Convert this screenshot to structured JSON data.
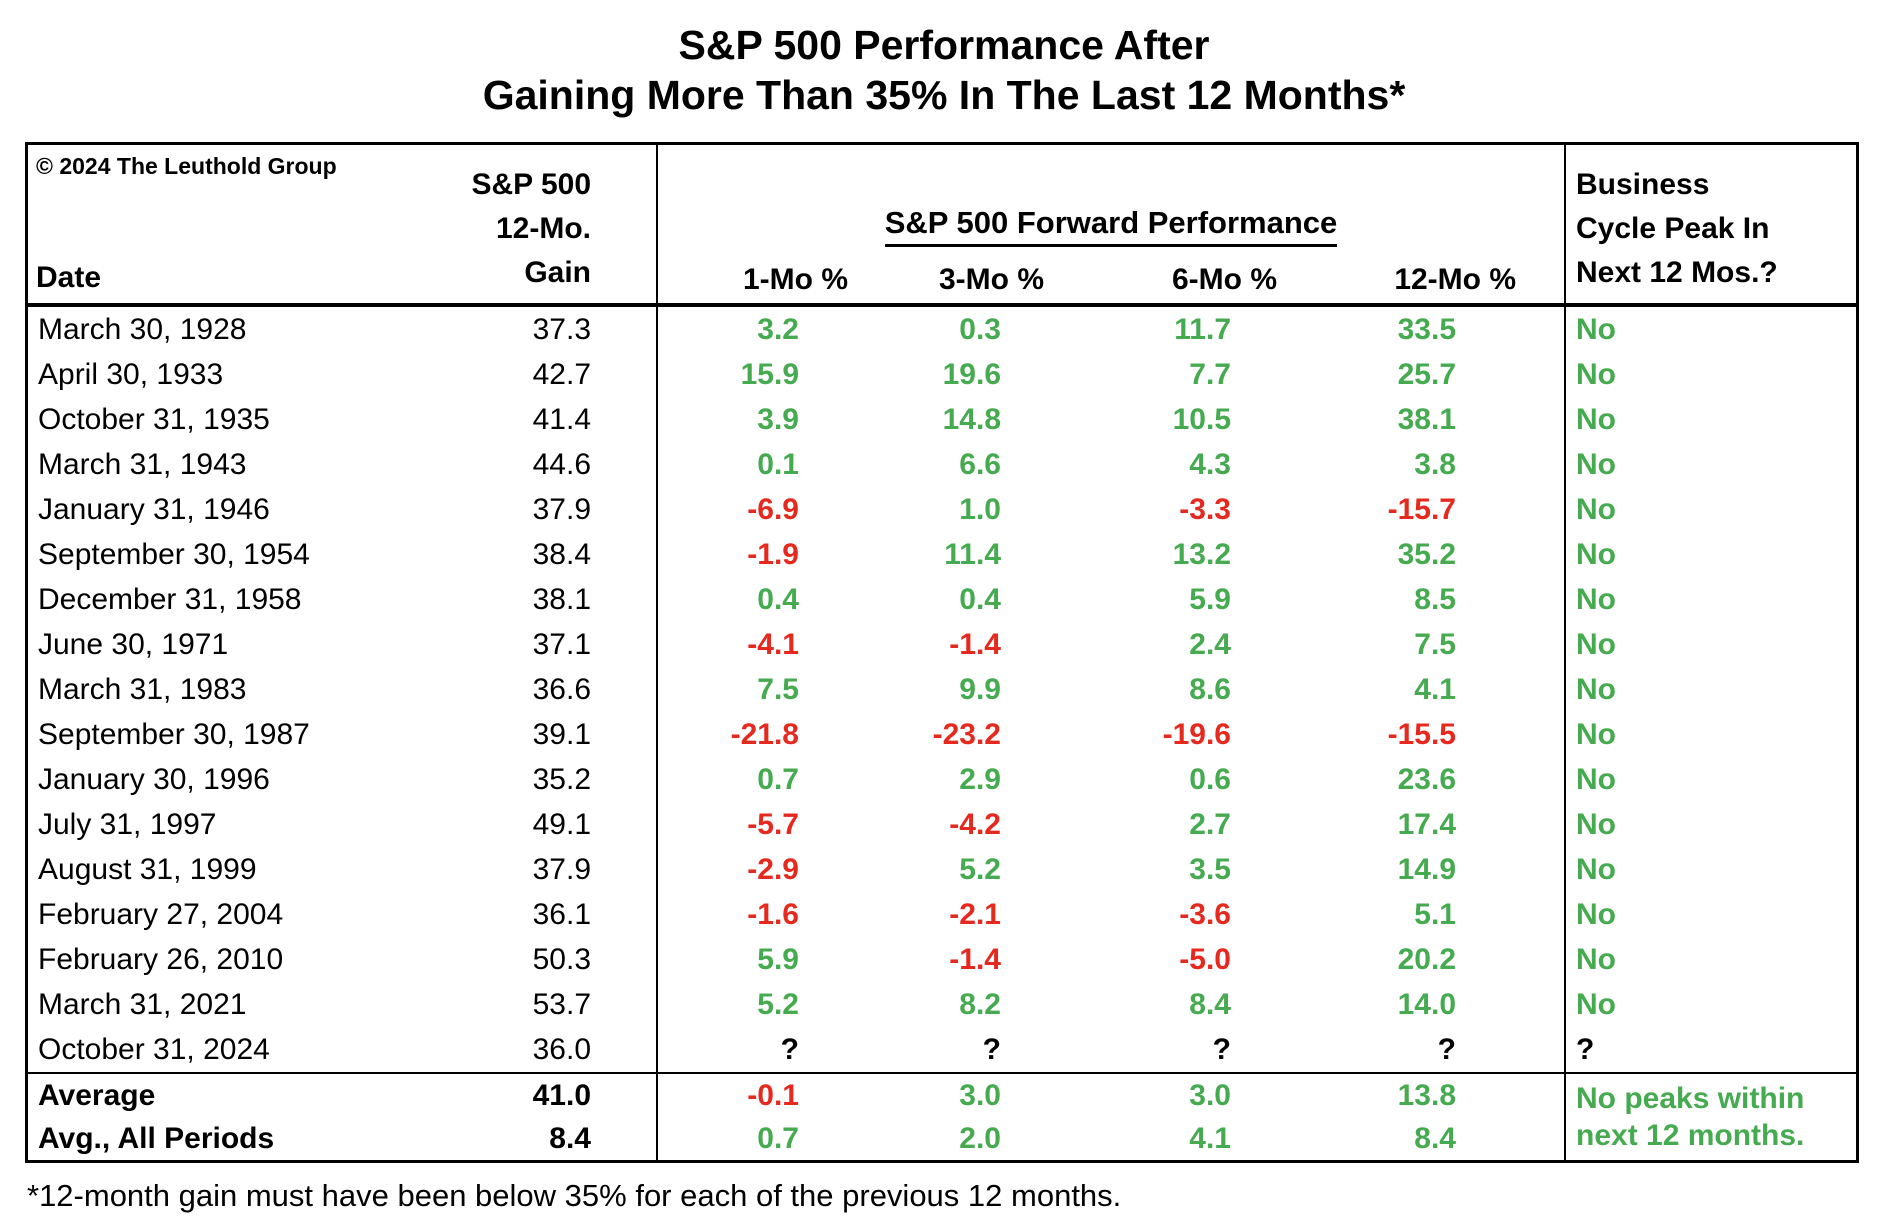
{
  "title": {
    "line1": "S&P 500 Performance After",
    "line2": "Gaining More Than 35% In The Last 12 Months*"
  },
  "copyright": "© 2024 The Leuthold Group",
  "header": {
    "date_label": "Date",
    "gain_lines": [
      "S&P 500",
      "12-Mo.",
      "Gain"
    ],
    "forward_title": "S&P 500 Forward Performance",
    "forward_cols": [
      "1-Mo %",
      "3-Mo %",
      "6-Mo %",
      "12-Mo %"
    ],
    "business_lines": [
      "Business",
      "Cycle Peak In",
      "Next 12 Mos.?"
    ]
  },
  "colors": {
    "positive": "#46AA50",
    "negative": "#E6291F",
    "neutral": "#000000"
  },
  "footnote": "*12-month gain must have been below 35% for each of the previous 12 months.",
  "chart_data": {
    "type": "table",
    "title": "S&P 500 Performance After Gaining More Than 35% In The Last 12 Months*",
    "columns": [
      "Date",
      "S&P 500 12-Mo. Gain",
      "1-Mo %",
      "3-Mo %",
      "6-Mo %",
      "12-Mo %",
      "Business Cycle Peak In Next 12 Mos.?"
    ],
    "rows": [
      [
        "March 30, 1928",
        "37.3",
        "3.2",
        "0.3",
        "11.7",
        "33.5",
        "No"
      ],
      [
        "April 30, 1933",
        "42.7",
        "15.9",
        "19.6",
        "7.7",
        "25.7",
        "No"
      ],
      [
        "October 31, 1935",
        "41.4",
        "3.9",
        "14.8",
        "10.5",
        "38.1",
        "No"
      ],
      [
        "March 31, 1943",
        "44.6",
        "0.1",
        "6.6",
        "4.3",
        "3.8",
        "No"
      ],
      [
        "January 31, 1946",
        "37.9",
        "-6.9",
        "1.0",
        "-3.3",
        "-15.7",
        "No"
      ],
      [
        "September 30, 1954",
        "38.4",
        "-1.9",
        "11.4",
        "13.2",
        "35.2",
        "No"
      ],
      [
        "December 31, 1958",
        "38.1",
        "0.4",
        "0.4",
        "5.9",
        "8.5",
        "No"
      ],
      [
        "June 30, 1971",
        "37.1",
        "-4.1",
        "-1.4",
        "2.4",
        "7.5",
        "No"
      ],
      [
        "March 31, 1983",
        "36.6",
        "7.5",
        "9.9",
        "8.6",
        "4.1",
        "No"
      ],
      [
        "September 30, 1987",
        "39.1",
        "-21.8",
        "-23.2",
        "-19.6",
        "-15.5",
        "No"
      ],
      [
        "January 30, 1996",
        "35.2",
        "0.7",
        "2.9",
        "0.6",
        "23.6",
        "No"
      ],
      [
        "July 31, 1997",
        "49.1",
        "-5.7",
        "-4.2",
        "2.7",
        "17.4",
        "No"
      ],
      [
        "August 31, 1999",
        "37.9",
        "-2.9",
        "5.2",
        "3.5",
        "14.9",
        "No"
      ],
      [
        "February 27, 2004",
        "36.1",
        "-1.6",
        "-2.1",
        "-3.6",
        "5.1",
        "No"
      ],
      [
        "February 26, 2010",
        "50.3",
        "5.9",
        "-1.4",
        "-5.0",
        "20.2",
        "No"
      ],
      [
        "March 31, 2021",
        "53.7",
        "5.2",
        "8.2",
        "8.4",
        "14.0",
        "No"
      ],
      [
        "October 31, 2024",
        "36.0",
        "?",
        "?",
        "?",
        "?",
        "?"
      ]
    ],
    "summary_rows": [
      [
        "Average",
        "41.0",
        "-0.1",
        "3.0",
        "3.0",
        "13.8"
      ],
      [
        "Avg., All Periods",
        "8.4",
        "0.7",
        "2.0",
        "4.1",
        "8.4"
      ]
    ],
    "summary_note": "No peaks within next 12 months.",
    "footnote": "*12-month gain must have been below 35% for each of the previous 12 months."
  }
}
